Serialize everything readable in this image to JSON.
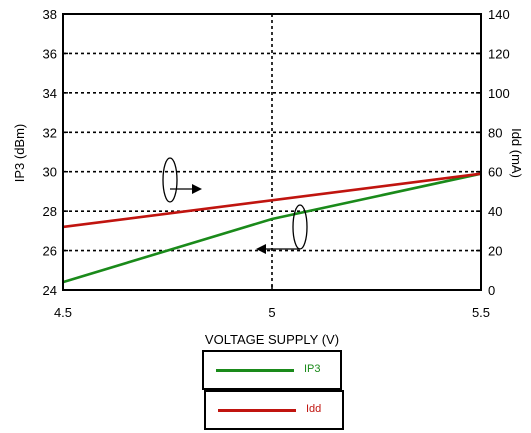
{
  "chart_data": {
    "type": "line",
    "xlabel": "VOLTAGE SUPPLY (V)",
    "ylabel_left": "IP3 (dBm)",
    "ylabel_right": "Idd (mA)",
    "x_ticks": [
      "4.5",
      "5",
      "5.5"
    ],
    "y_left_ticks": [
      "24",
      "26",
      "28",
      "30",
      "32",
      "34",
      "36",
      "38"
    ],
    "y_right_ticks": [
      "0",
      "20",
      "40",
      "60",
      "80",
      "100",
      "120",
      "140"
    ],
    "xlim": [
      4.5,
      5.5
    ],
    "ylim_left": [
      24,
      38
    ],
    "ylim_right": [
      0,
      140
    ],
    "grid": true,
    "series": [
      {
        "name": "IP3",
        "axis": "left",
        "color": "#1a8a1a",
        "x": [
          4.5,
          5.0,
          5.5
        ],
        "y": [
          24.4,
          27.6,
          29.9
        ]
      },
      {
        "name": "Idd",
        "axis": "right",
        "color": "#c0140f",
        "x": [
          4.5,
          5.5
        ],
        "y": [
          32,
          59
        ]
      }
    ],
    "legend": {
      "placement": "bottom",
      "entries": [
        "IP3",
        "Idd"
      ]
    }
  }
}
